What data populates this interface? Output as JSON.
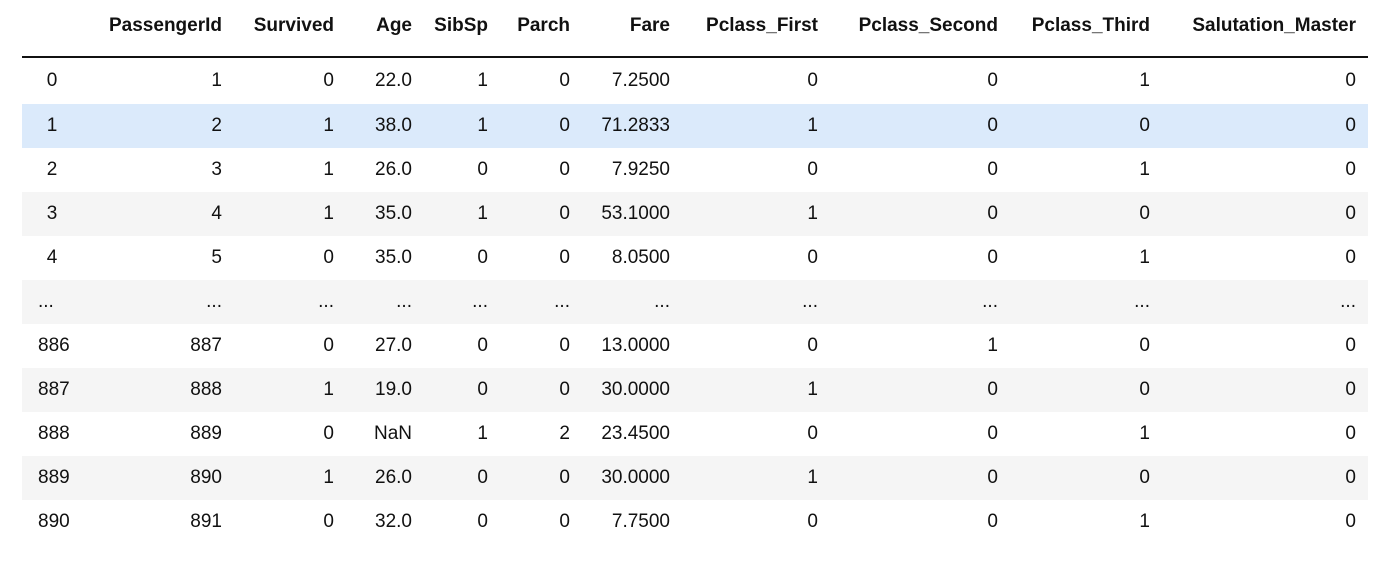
{
  "table": {
    "columns": [
      "",
      "PassengerId",
      "Survived",
      "Age",
      "SibSp",
      "Parch",
      "Fare",
      "Pclass_First",
      "Pclass_Second",
      "Pclass_Third",
      "Salutation_Master"
    ],
    "rows": [
      {
        "index": "0",
        "cells": [
          "1",
          "0",
          "22.0",
          "1",
          "0",
          "7.2500",
          "0",
          "0",
          "1",
          "0"
        ]
      },
      {
        "index": "1",
        "cells": [
          "2",
          "1",
          "38.0",
          "1",
          "0",
          "71.2833",
          "1",
          "0",
          "0",
          "0"
        ]
      },
      {
        "index": "2",
        "cells": [
          "3",
          "1",
          "26.0",
          "0",
          "0",
          "7.9250",
          "0",
          "0",
          "1",
          "0"
        ]
      },
      {
        "index": "3",
        "cells": [
          "4",
          "1",
          "35.0",
          "1",
          "0",
          "53.1000",
          "1",
          "0",
          "0",
          "0"
        ]
      },
      {
        "index": "4",
        "cells": [
          "5",
          "0",
          "35.0",
          "0",
          "0",
          "8.0500",
          "0",
          "0",
          "1",
          "0"
        ]
      },
      {
        "index": "...",
        "cells": [
          "...",
          "...",
          "...",
          "...",
          "...",
          "...",
          "...",
          "...",
          "...",
          "..."
        ]
      },
      {
        "index": "886",
        "cells": [
          "887",
          "0",
          "27.0",
          "0",
          "0",
          "13.0000",
          "0",
          "1",
          "0",
          "0"
        ]
      },
      {
        "index": "887",
        "cells": [
          "888",
          "1",
          "19.0",
          "0",
          "0",
          "30.0000",
          "1",
          "0",
          "0",
          "0"
        ]
      },
      {
        "index": "888",
        "cells": [
          "889",
          "0",
          "NaN",
          "1",
          "2",
          "23.4500",
          "0",
          "0",
          "1",
          "0"
        ]
      },
      {
        "index": "889",
        "cells": [
          "890",
          "1",
          "26.0",
          "0",
          "0",
          "30.0000",
          "1",
          "0",
          "0",
          "0"
        ]
      },
      {
        "index": "890",
        "cells": [
          "891",
          "0",
          "32.0",
          "0",
          "0",
          "7.7500",
          "0",
          "0",
          "1",
          "0"
        ]
      }
    ],
    "highlighted_row": 1
  },
  "colors": {
    "text": "#111111",
    "stripe": "#f5f5f5",
    "hover_highlight": "#dbeafb",
    "header_rule": "#111111"
  }
}
